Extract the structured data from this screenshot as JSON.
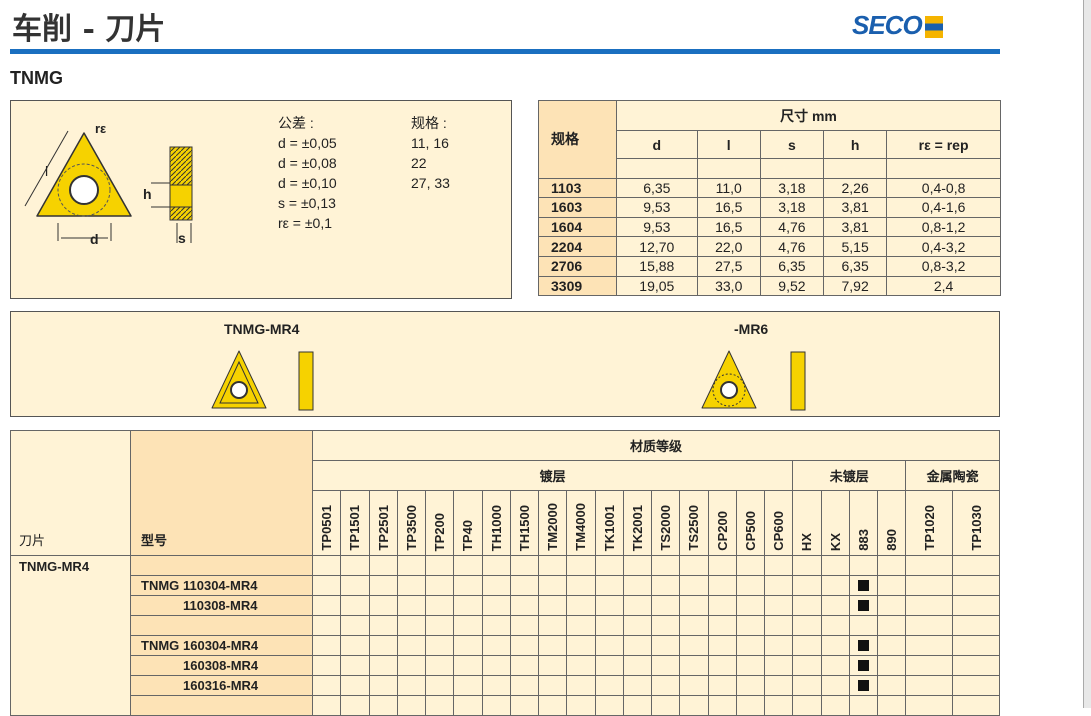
{
  "header": {
    "title": "车削 - 刀片",
    "logo": "SECO",
    "subtitle": "TNMG",
    "accent": "#1a6fc0"
  },
  "tolerance": {
    "title": "公差 :",
    "lines": [
      "d = ±0,05",
      "d = ±0,08",
      "d = ±0,10",
      "s = ±0,13",
      "rε = ±0,1"
    ],
    "spec_title": "规格 :",
    "specs": [
      "11, 16",
      "22",
      "27, 33"
    ],
    "diagram_labels": {
      "l": "l",
      "d": "d",
      "h": "h",
      "s": "s",
      "re": "rε"
    }
  },
  "dimensions": {
    "spec_header": "规格",
    "group_header": "尺寸 mm",
    "columns": [
      "d",
      "l",
      "s",
      "h",
      "rε = rep"
    ],
    "rows": [
      [
        "1103",
        "6,35",
        "11,0",
        "3,18",
        "2,26",
        "0,4-0,8"
      ],
      [
        "1603",
        "9,53",
        "16,5",
        "3,18",
        "3,81",
        "0,4-1,6"
      ],
      [
        "1604",
        "9,53",
        "16,5",
        "4,76",
        "3,81",
        "0,8-1,2"
      ],
      [
        "2204",
        "12,70",
        "22,0",
        "4,76",
        "5,15",
        "0,4-3,2"
      ],
      [
        "2706",
        "15,88",
        "27,5",
        "6,35",
        "6,35",
        "0,8-3,2"
      ],
      [
        "3309",
        "19,05",
        "33,0",
        "9,52",
        "7,92",
        "2,4"
      ]
    ]
  },
  "geometry": {
    "left": "TNMG-MR4",
    "right": "-MR6"
  },
  "grades": {
    "insert_header": "刀片",
    "type_header": "型号",
    "material_header": "材质等级",
    "groups": [
      {
        "label": "镀层",
        "span": 17
      },
      {
        "label": "未镀层",
        "span": 4
      },
      {
        "label": "金属陶瓷",
        "span": 2
      }
    ],
    "columns": [
      "TP0501",
      "TP1501",
      "TP2501",
      "TP3500",
      "TP200",
      "TP40",
      "TH1000",
      "TH1500",
      "TM2000",
      "TM4000",
      "TK1001",
      "TK2001",
      "TS2000",
      "TS2500",
      "CP200",
      "CP500",
      "CP600",
      "HX",
      "KX",
      "883",
      "890",
      "TP1020",
      "TP1030"
    ],
    "insert_name": "TNMG-MR4",
    "rows": [
      {
        "prefix": "",
        "code": "",
        "marks": []
      },
      {
        "prefix": "TNMG",
        "code": "110304-MR4",
        "marks": [
          "883"
        ]
      },
      {
        "prefix": "",
        "code": "110308-MR4",
        "marks": [
          "883"
        ]
      },
      {
        "prefix": "",
        "code": "",
        "marks": []
      },
      {
        "prefix": "TNMG",
        "code": "160304-MR4",
        "marks": [
          "883"
        ]
      },
      {
        "prefix": "",
        "code": "160308-MR4",
        "marks": [
          "883"
        ]
      },
      {
        "prefix": "",
        "code": "160316-MR4",
        "marks": [
          "883"
        ]
      },
      {
        "prefix": "",
        "code": "",
        "marks": []
      }
    ]
  }
}
